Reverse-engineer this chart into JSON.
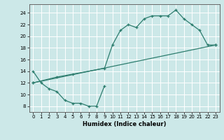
{
  "xlabel": "Humidex (Indice chaleur)",
  "bg_color": "#cce8e8",
  "grid_color": "#ffffff",
  "line_color": "#2d7d6e",
  "line1_x": [
    0,
    1,
    2,
    3,
    4,
    5,
    6,
    7,
    8,
    9
  ],
  "line1_y": [
    14,
    12,
    11,
    10.5,
    9,
    8.5,
    8.5,
    8,
    8,
    11.5
  ],
  "line2_x": [
    0,
    3,
    5,
    9,
    10,
    11,
    12,
    13,
    14,
    15,
    16,
    17,
    18,
    19,
    20,
    21,
    22,
    23
  ],
  "line2_y": [
    12,
    13,
    13.5,
    14.5,
    18.5,
    21,
    22,
    21.5,
    23,
    23.5,
    23.5,
    23.5,
    24.5,
    23,
    22,
    21,
    18.5,
    18.5
  ],
  "line3_x": [
    0,
    23
  ],
  "line3_y": [
    12,
    18.5
  ],
  "xlim": [
    -0.5,
    23.5
  ],
  "ylim": [
    7,
    25.5
  ],
  "yticks": [
    8,
    10,
    12,
    14,
    16,
    18,
    20,
    22,
    24
  ],
  "xticks": [
    0,
    1,
    2,
    3,
    4,
    5,
    6,
    7,
    8,
    9,
    10,
    11,
    12,
    13,
    14,
    15,
    16,
    17,
    18,
    19,
    20,
    21,
    22,
    23
  ],
  "xlabel_fontsize": 6,
  "tick_fontsize": 5
}
